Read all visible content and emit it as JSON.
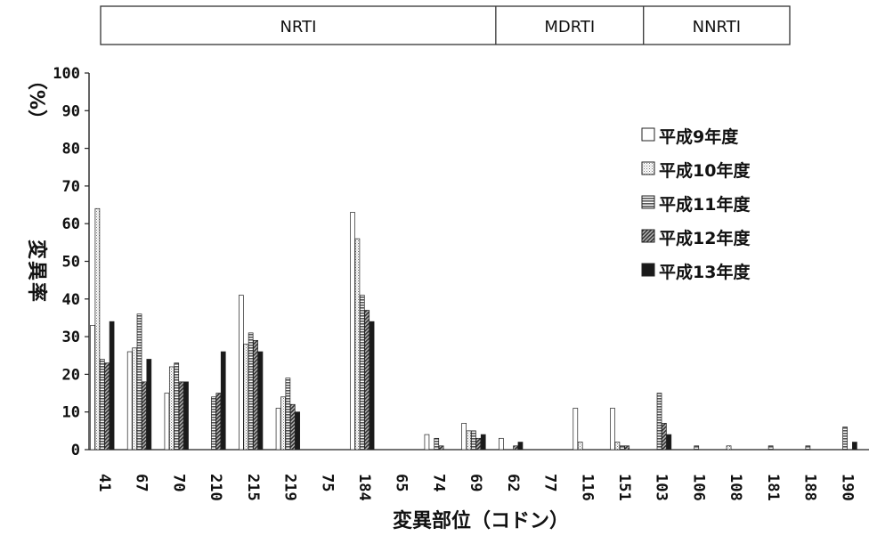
{
  "chart_data": {
    "type": "bar",
    "title": "",
    "xlabel": "変異部位（コドン）",
    "ylabel": "変異率",
    "ylabel_unit": "（%）",
    "ylim": [
      0,
      100
    ],
    "yticks": [
      0,
      10,
      20,
      30,
      40,
      50,
      60,
      70,
      80,
      90,
      100
    ],
    "categories": [
      "41",
      "67",
      "70",
      "210",
      "215",
      "219",
      "75",
      "184",
      "65",
      "74",
      "69",
      "62",
      "77",
      "116",
      "151",
      "103",
      "106",
      "108",
      "181",
      "188",
      "190"
    ],
    "drug_classes": [
      {
        "label": "NRTI",
        "categories": [
          "41",
          "67",
          "70",
          "210",
          "215",
          "219",
          "75",
          "184",
          "65",
          "74",
          "69"
        ]
      },
      {
        "label": "MDRTI",
        "categories": [
          "62",
          "77",
          "116",
          "151"
        ]
      },
      {
        "label": "NNRTI",
        "categories": [
          "103",
          "106",
          "108",
          "181",
          "188",
          "190"
        ]
      }
    ],
    "legend_position": "right",
    "series": [
      {
        "name": "平成9年度",
        "color": "#ffffff",
        "values": [
          33,
          26,
          15,
          0,
          41,
          11,
          0,
          63,
          0,
          4,
          7,
          3,
          0,
          11,
          11,
          0,
          0,
          0,
          0,
          0,
          0
        ]
      },
      {
        "name": "平成10年度",
        "color": "#e8e8e8",
        "values": [
          64,
          27,
          22,
          0,
          28,
          14,
          0,
          56,
          0,
          0,
          5,
          0,
          0,
          2,
          2,
          0,
          0,
          1,
          0,
          0,
          0
        ]
      },
      {
        "name": "平成11年度",
        "color": "#9a9a9a",
        "values": [
          24,
          36,
          23,
          14,
          31,
          19,
          0,
          41,
          0,
          3,
          5,
          0,
          0,
          0,
          1,
          15,
          1,
          0,
          1,
          1,
          6
        ]
      },
      {
        "name": "平成12年度",
        "color": "#6a6a6a",
        "values": [
          23,
          18,
          18,
          15,
          29,
          12,
          0,
          37,
          0,
          1,
          3,
          1,
          0,
          0,
          1,
          7,
          0,
          0,
          0,
          0,
          0
        ]
      },
      {
        "name": "平成13年度",
        "color": "#1a1a1a",
        "values": [
          34,
          24,
          18,
          26,
          26,
          10,
          0,
          34,
          0,
          0,
          4,
          2,
          0,
          0,
          0,
          4,
          0,
          0,
          0,
          0,
          2
        ]
      }
    ]
  }
}
